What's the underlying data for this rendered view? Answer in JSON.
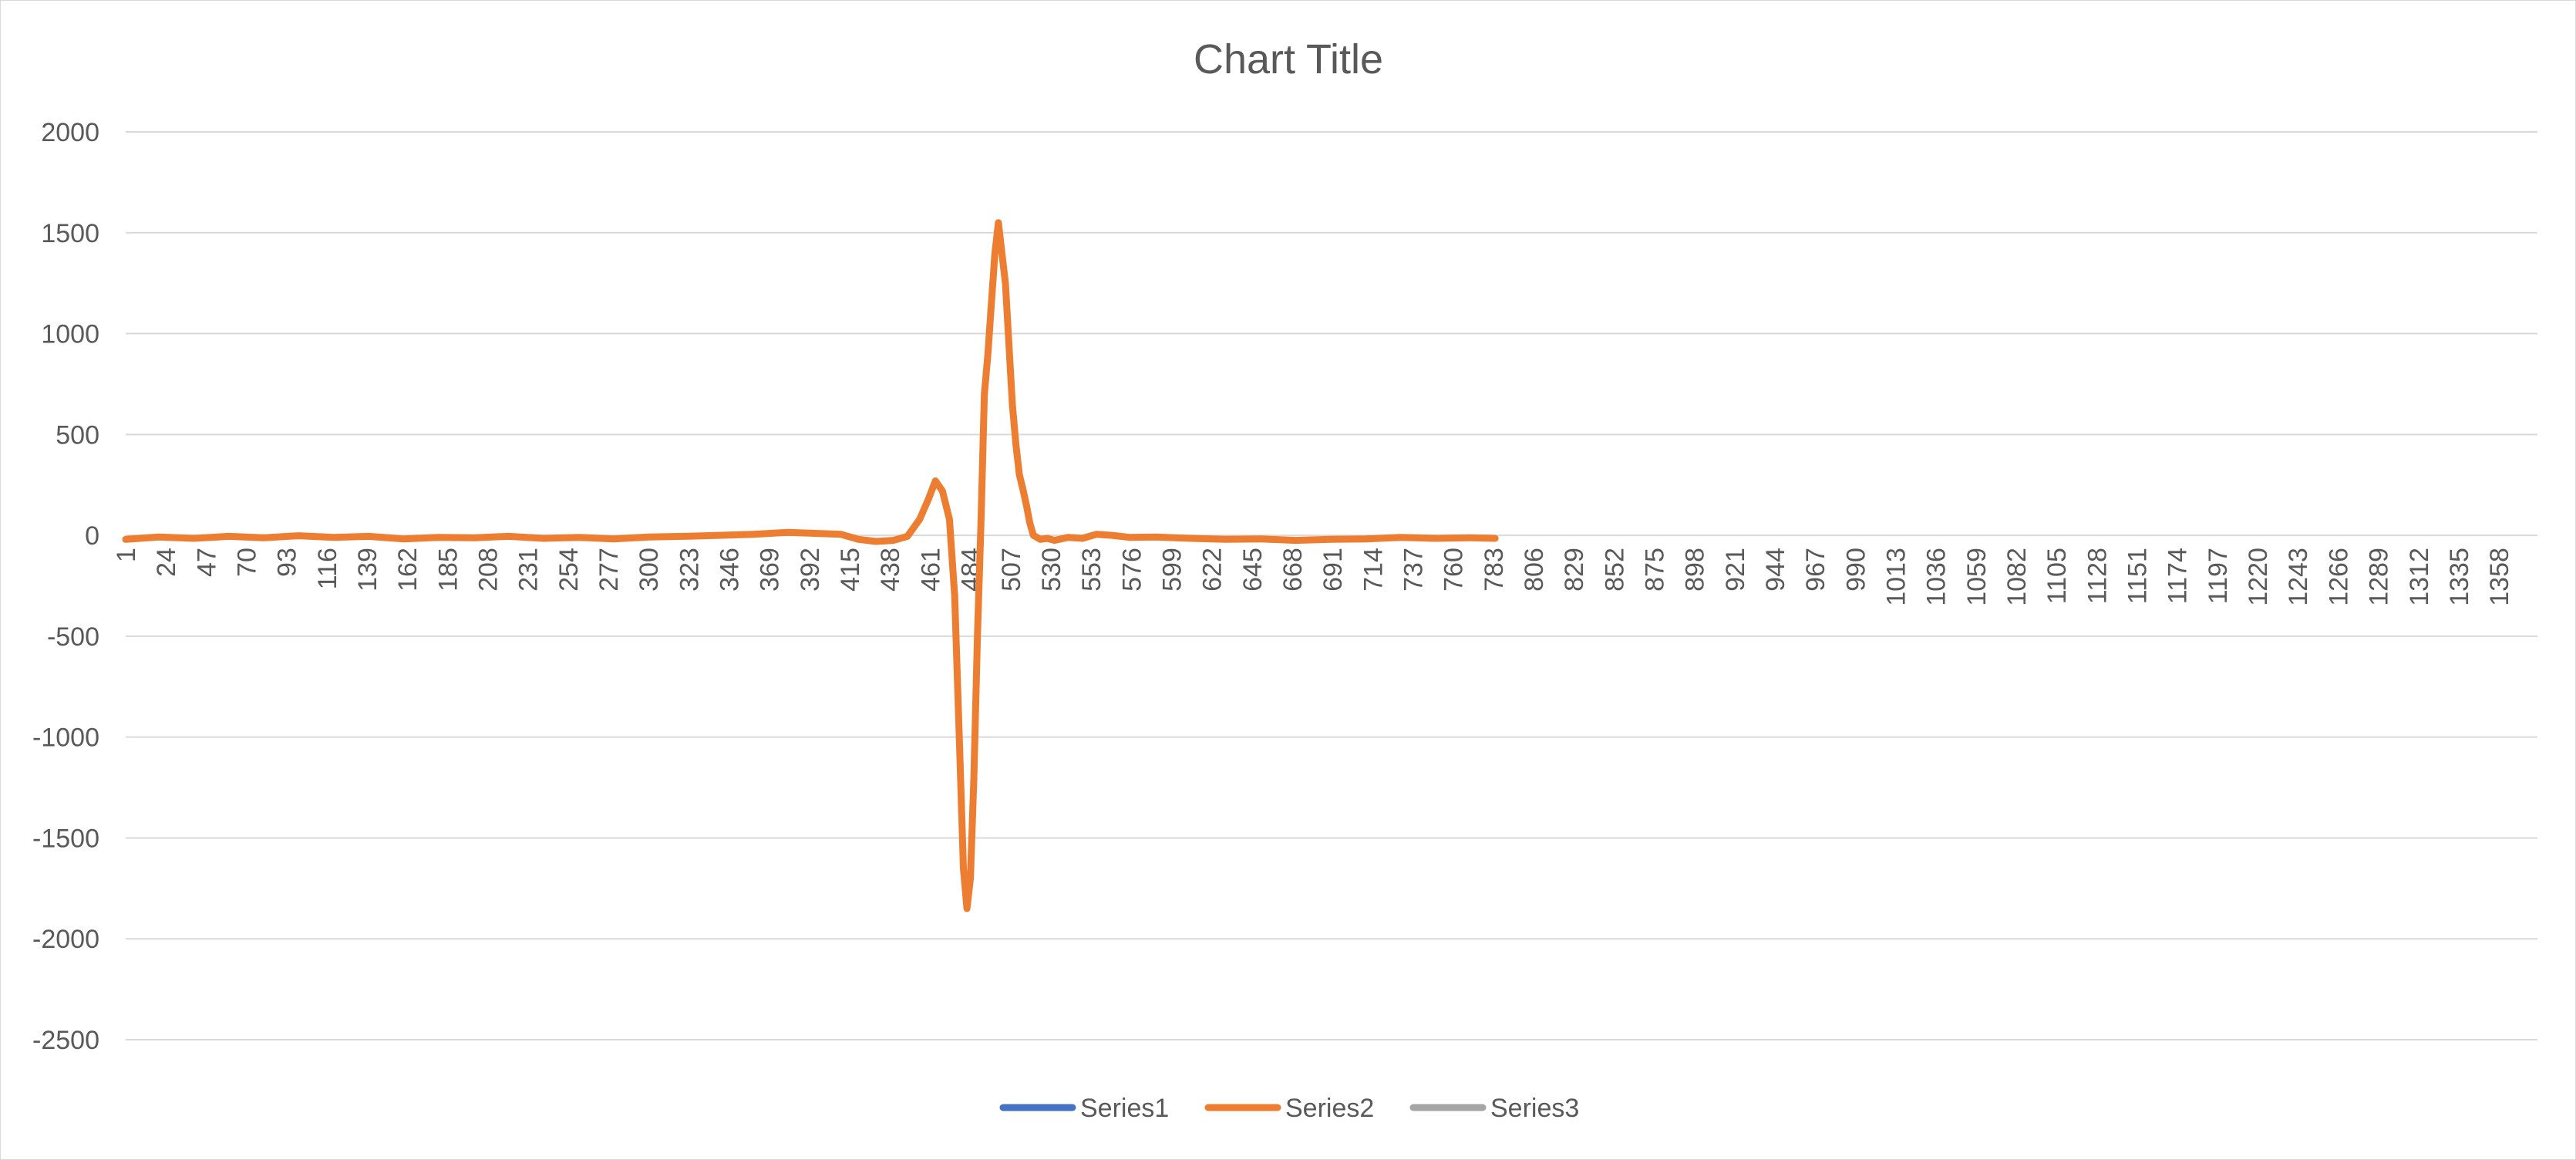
{
  "chart_data": {
    "type": "line",
    "title": "Chart Title",
    "xlabel": "",
    "ylabel": "",
    "ylim": [
      -2500,
      2000
    ],
    "y_ticks": [
      2000,
      1500,
      1000,
      500,
      0,
      -500,
      -1000,
      -1500,
      -2000,
      -2500
    ],
    "x_range": [
      1,
      1380
    ],
    "x_ticks": [
      1,
      24,
      47,
      70,
      93,
      116,
      139,
      162,
      185,
      208,
      231,
      254,
      277,
      300,
      323,
      346,
      369,
      392,
      415,
      438,
      461,
      484,
      507,
      530,
      553,
      576,
      599,
      622,
      645,
      668,
      691,
      714,
      737,
      760,
      783,
      806,
      829,
      852,
      875,
      898,
      921,
      944,
      967,
      990,
      1013,
      1036,
      1059,
      1082,
      1105,
      1128,
      1151,
      1174,
      1197,
      1220,
      1243,
      1266,
      1289,
      1312,
      1335,
      1358
    ],
    "grid": true,
    "legend_position": "bottom",
    "series": [
      {
        "name": "Series1",
        "color": "#4472C4",
        "x": [],
        "y": []
      },
      {
        "name": "Series2",
        "color": "#ED7D31",
        "x": [
          1,
          20,
          40,
          60,
          80,
          100,
          120,
          140,
          160,
          180,
          200,
          220,
          240,
          260,
          280,
          300,
          320,
          340,
          360,
          380,
          395,
          410,
          420,
          430,
          440,
          448,
          455,
          460,
          464,
          468,
          472,
          475,
          478,
          480,
          482,
          484,
          486,
          488,
          490,
          492,
          494,
          496,
          498,
          500,
          502,
          504,
          506,
          508,
          510,
          512,
          514,
          516,
          518,
          520,
          524,
          528,
          532,
          540,
          548,
          556,
          565,
          575,
          590,
          610,
          630,
          650,
          670,
          690,
          710,
          730,
          750,
          770,
          784
        ],
        "y": [
          -20,
          -8,
          -15,
          -5,
          -12,
          -2,
          -10,
          -5,
          -18,
          -10,
          -12,
          -5,
          -15,
          -10,
          -18,
          -8,
          -5,
          0,
          5,
          15,
          10,
          5,
          -20,
          -30,
          -25,
          -5,
          80,
          180,
          270,
          220,
          80,
          -300,
          -1100,
          -1650,
          -1850,
          -1700,
          -1200,
          -500,
          50,
          700,
          900,
          1150,
          1400,
          1550,
          1400,
          1250,
          950,
          650,
          450,
          300,
          230,
          150,
          60,
          0,
          -20,
          -15,
          -25,
          -10,
          -15,
          5,
          0,
          -10,
          -8,
          -15,
          -20,
          -18,
          -25,
          -20,
          -18,
          -10,
          -15,
          -12,
          -15
        ]
      },
      {
        "name": "Series3",
        "color": "#A5A5A5",
        "x": [],
        "y": []
      }
    ]
  }
}
